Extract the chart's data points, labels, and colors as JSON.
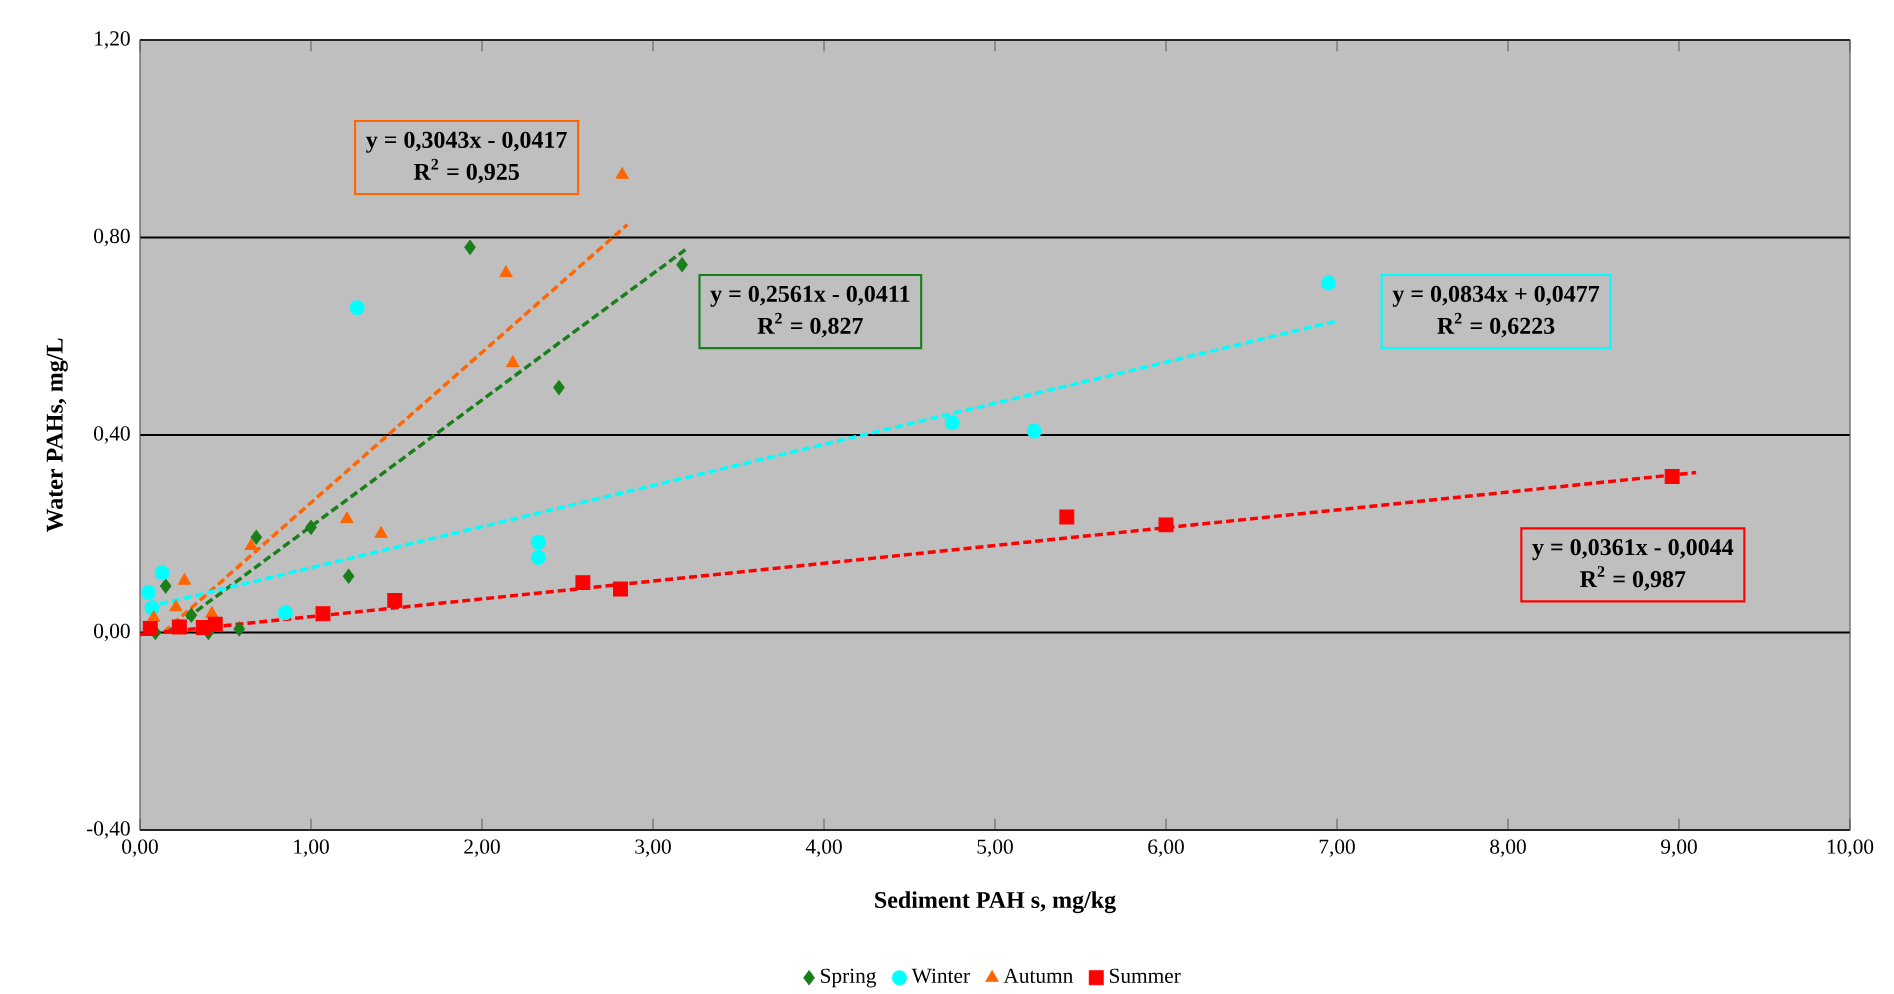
{
  "chart_data": {
    "type": "scatter",
    "xlabel": "Sediment PAH s, mg/kg",
    "ylabel": "Water PAHs, mg/L",
    "xlim": [
      0,
      10
    ],
    "ylim": [
      -0.4,
      1.2
    ],
    "xticks": [
      {
        "value": 0,
        "label": "0,00"
      },
      {
        "value": 1,
        "label": "1,00"
      },
      {
        "value": 2,
        "label": "2,00"
      },
      {
        "value": 3,
        "label": "3,00"
      },
      {
        "value": 4,
        "label": "4,00"
      },
      {
        "value": 5,
        "label": "5,00"
      },
      {
        "value": 6,
        "label": "6,00"
      },
      {
        "value": 7,
        "label": "7,00"
      },
      {
        "value": 8,
        "label": "8,00"
      },
      {
        "value": 9,
        "label": "9,00"
      },
      {
        "value": 10,
        "label": "10,00"
      }
    ],
    "yticks": [
      {
        "value": -0.4,
        "label": "-0,40"
      },
      {
        "value": 0,
        "label": "0,00"
      },
      {
        "value": 0.4,
        "label": "0,40"
      },
      {
        "value": 0.8,
        "label": "0,80"
      },
      {
        "value": 1.2,
        "label": "1,20"
      }
    ],
    "grid": "y",
    "legend": "bottom",
    "series": [
      {
        "name": "Spring",
        "color": "#1a7f1a",
        "marker": "diamond",
        "x": [
          0.09,
          0.15,
          0.3,
          0.4,
          0.58,
          0.68,
          1.0,
          1.22,
          1.93,
          2.45,
          3.17
        ],
        "values": [
          0.0,
          0.094,
          0.035,
          0.0,
          0.007,
          0.193,
          0.213,
          0.114,
          0.78,
          0.496,
          0.745
        ]
      },
      {
        "name": "Winter",
        "color": "#00ffff",
        "marker": "circle",
        "x": [
          0.05,
          0.07,
          0.13,
          0.85,
          1.27,
          2.33,
          2.33,
          4.75,
          5.23,
          6.95
        ],
        "values": [
          0.081,
          0.05,
          0.121,
          0.04,
          0.658,
          0.183,
          0.152,
          0.425,
          0.408,
          0.708
        ]
      },
      {
        "name": "Autumn",
        "color": "#ff6600",
        "marker": "triangle",
        "x": [
          0.08,
          0.21,
          0.26,
          0.42,
          0.65,
          1.21,
          1.41,
          2.14,
          2.18,
          2.82
        ],
        "values": [
          0.03,
          0.051,
          0.105,
          0.038,
          0.175,
          0.23,
          0.2,
          0.728,
          0.546,
          0.927
        ]
      },
      {
        "name": "Summer",
        "color": "#ff0000",
        "marker": "square",
        "x": [
          0.06,
          0.23,
          0.37,
          0.44,
          1.07,
          1.49,
          2.59,
          2.81,
          5.42,
          6.0,
          8.96
        ],
        "values": [
          0.008,
          0.011,
          0.01,
          0.017,
          0.038,
          0.065,
          0.101,
          0.088,
          0.234,
          0.218,
          0.316
        ]
      },
      {
        "type": "line",
        "color": "#ff6600",
        "line_style": "dashed",
        "x": [
          0.14,
          2.85
        ],
        "values": [
          0.001,
          0.826
        ]
      },
      {
        "type": "line",
        "color": "#1a7f1a",
        "line_style": "dashed",
        "x": [
          0.16,
          3.2
        ],
        "values": [
          0.0,
          0.778
        ]
      },
      {
        "type": "line",
        "color": "#00ffff",
        "line_style": "dashed",
        "x": [
          0.05,
          7.0
        ],
        "values": [
          0.052,
          0.631
        ]
      },
      {
        "type": "line",
        "color": "#ff0000",
        "line_style": "dashed",
        "x": [
          0.0,
          9.1
        ],
        "values": [
          -0.004,
          0.324
        ]
      }
    ],
    "annotations": [
      "y = 0,3043x - 0,0417",
      "R$^{2}$ = 0,925",
      "y = 0,2561x - 0,0411",
      "R$^{2}$ = 0,827",
      "y = 0,0834x + 0,0477",
      "R$^{2}$ = 0,6223",
      "y = 0,0361x - 0,0044",
      "R$^{2}$ = 0,987"
    ]
  }
}
